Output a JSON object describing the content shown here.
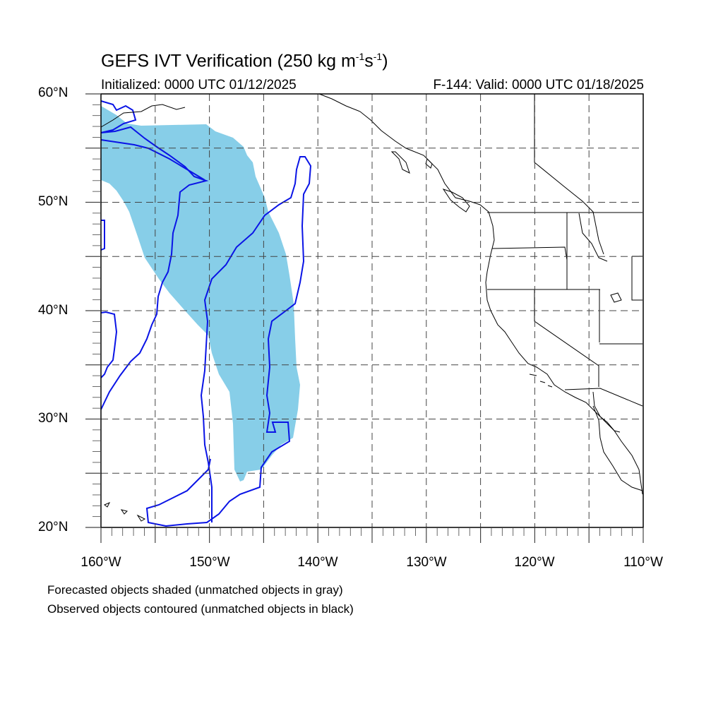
{
  "header": {
    "title_prefix": "GEFS IVT Verification (250 kg m",
    "title_sup1": "-1",
    "title_mid": "s",
    "title_sup2": "-1",
    "title_suffix": ")",
    "initialized": "Initialized: 0000 UTC 01/12/2025",
    "valid": "F-144: Valid: 0000 UTC 01/18/2025"
  },
  "map": {
    "projection": "cylindrical-equidistant",
    "lon_range": [
      -160,
      -110
    ],
    "lat_range": [
      20,
      60
    ],
    "grid": "dashed",
    "lat_labels": [
      "20°N",
      "30°N",
      "40°N",
      "50°N",
      "60°N"
    ],
    "lon_labels": [
      "160°W",
      "150°W",
      "140°W",
      "130°W",
      "120°W",
      "110°W"
    ],
    "colors": {
      "forecast_fill": "#87cee8",
      "observed_contour": "#0a14e6",
      "coastline": "#000000"
    }
  },
  "legend": {
    "line1": "Forecasted objects shaded (unmatched objects in gray)",
    "line2": "Observed objects contoured (unmatched objects in black)"
  }
}
